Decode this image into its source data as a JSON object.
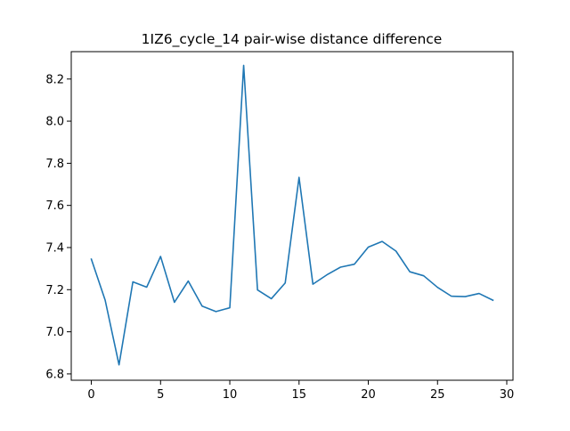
{
  "chart_data": {
    "type": "line",
    "title": "1IZ6_cycle_14 pair-wise distance difference",
    "xlabel": "",
    "ylabel": "",
    "xlim": [
      -1.45,
      30.45
    ],
    "ylim": [
      6.77,
      8.33
    ],
    "xticks": [
      0,
      5,
      10,
      15,
      20,
      25,
      30
    ],
    "yticks": [
      6.8,
      7.0,
      7.2,
      7.4,
      7.6,
      7.8,
      8.0,
      8.2
    ],
    "ytick_labels": [
      "6.8",
      "7.0",
      "7.2",
      "7.4",
      "7.6",
      "7.8",
      "8.0",
      "8.2"
    ],
    "grid": false,
    "legend": "none",
    "series": [
      {
        "color": "#1f77b4",
        "x": [
          0,
          1,
          2,
          3,
          4,
          5,
          6,
          7,
          8,
          9,
          10,
          11,
          12,
          13,
          14,
          15,
          16,
          17,
          18,
          19,
          20,
          21,
          22,
          23,
          24,
          25,
          26,
          27,
          28,
          29
        ],
        "values": [
          7.345,
          7.15,
          6.843,
          7.237,
          7.212,
          7.358,
          7.14,
          7.241,
          7.122,
          7.096,
          7.114,
          8.265,
          7.199,
          7.157,
          7.232,
          7.733,
          7.226,
          7.27,
          7.307,
          7.321,
          7.402,
          7.429,
          7.383,
          7.285,
          7.266,
          7.211,
          7.169,
          7.167,
          7.182,
          7.15
        ]
      }
    ]
  }
}
